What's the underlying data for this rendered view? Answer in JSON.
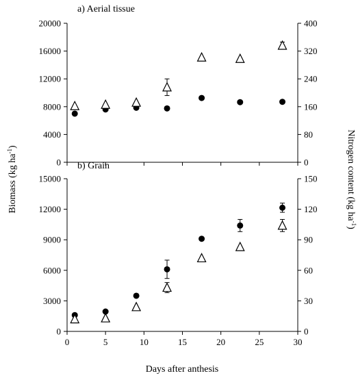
{
  "figure": {
    "xlabel": "Days after anthesis",
    "ylabel_left": "Biomass (kg ha",
    "ylabel_left_sup": "-1",
    "ylabel_left_end": ")",
    "ylabel_right": "Nitrogen content (kg ha",
    "ylabel_right_sup": "-1",
    "ylabel_right_end": ")",
    "marker_fill": "#000000",
    "marker_open": "#ffffff"
  },
  "chart_data": [
    {
      "type": "scatter",
      "title": "a) Aerial tissue",
      "x_range": [
        0,
        30
      ],
      "x_ticks": [
        0,
        5,
        10,
        15,
        20,
        25,
        30
      ],
      "y_left_range": [
        0,
        20000
      ],
      "y_left_ticks": [
        0,
        4000,
        8000,
        12000,
        16000,
        20000
      ],
      "y_right_range": [
        0,
        400
      ],
      "y_right_ticks": [
        0,
        80,
        160,
        240,
        320,
        400
      ],
      "grid": false,
      "series": [
        {
          "marker": "filled-circle",
          "axis": "left",
          "x": [
            1,
            5,
            9,
            13,
            17.5,
            22.5,
            28
          ],
          "y": [
            7000,
            7600,
            7850,
            7750,
            9250,
            8650,
            8700
          ],
          "err": [
            0,
            0,
            0,
            0,
            0,
            0,
            0
          ]
        },
        {
          "marker": "open-triangle",
          "axis": "right",
          "x": [
            1,
            5,
            9,
            13,
            17.5,
            22.5,
            28
          ],
          "y": [
            162,
            166,
            172,
            216,
            302,
            298,
            336
          ],
          "err": [
            0,
            0,
            0,
            24,
            0,
            0,
            10
          ]
        }
      ]
    },
    {
      "type": "scatter",
      "title": "b) Grain",
      "x_range": [
        0,
        30
      ],
      "x_ticks": [
        0,
        5,
        10,
        15,
        20,
        25,
        30
      ],
      "y_left_range": [
        0,
        15000
      ],
      "y_left_ticks": [
        0,
        3000,
        6000,
        9000,
        12000,
        15000
      ],
      "y_right_range": [
        0,
        150
      ],
      "y_right_ticks": [
        0,
        30,
        60,
        90,
        120,
        150
      ],
      "grid": false,
      "series": [
        {
          "marker": "filled-circle",
          "axis": "left",
          "x": [
            1,
            5,
            9,
            13,
            17.5,
            22.5,
            28
          ],
          "y": [
            1600,
            1950,
            3500,
            6100,
            9100,
            10400,
            12150
          ],
          "err": [
            0,
            0,
            0,
            900,
            0,
            600,
            450
          ]
        },
        {
          "marker": "open-triangle",
          "axis": "right",
          "x": [
            1,
            5,
            9,
            13,
            17.5,
            22.5,
            28
          ],
          "y": [
            12,
            13,
            24,
            43,
            72,
            83,
            104
          ],
          "err": [
            0,
            0,
            0,
            5,
            0,
            0,
            6
          ]
        }
      ]
    }
  ]
}
